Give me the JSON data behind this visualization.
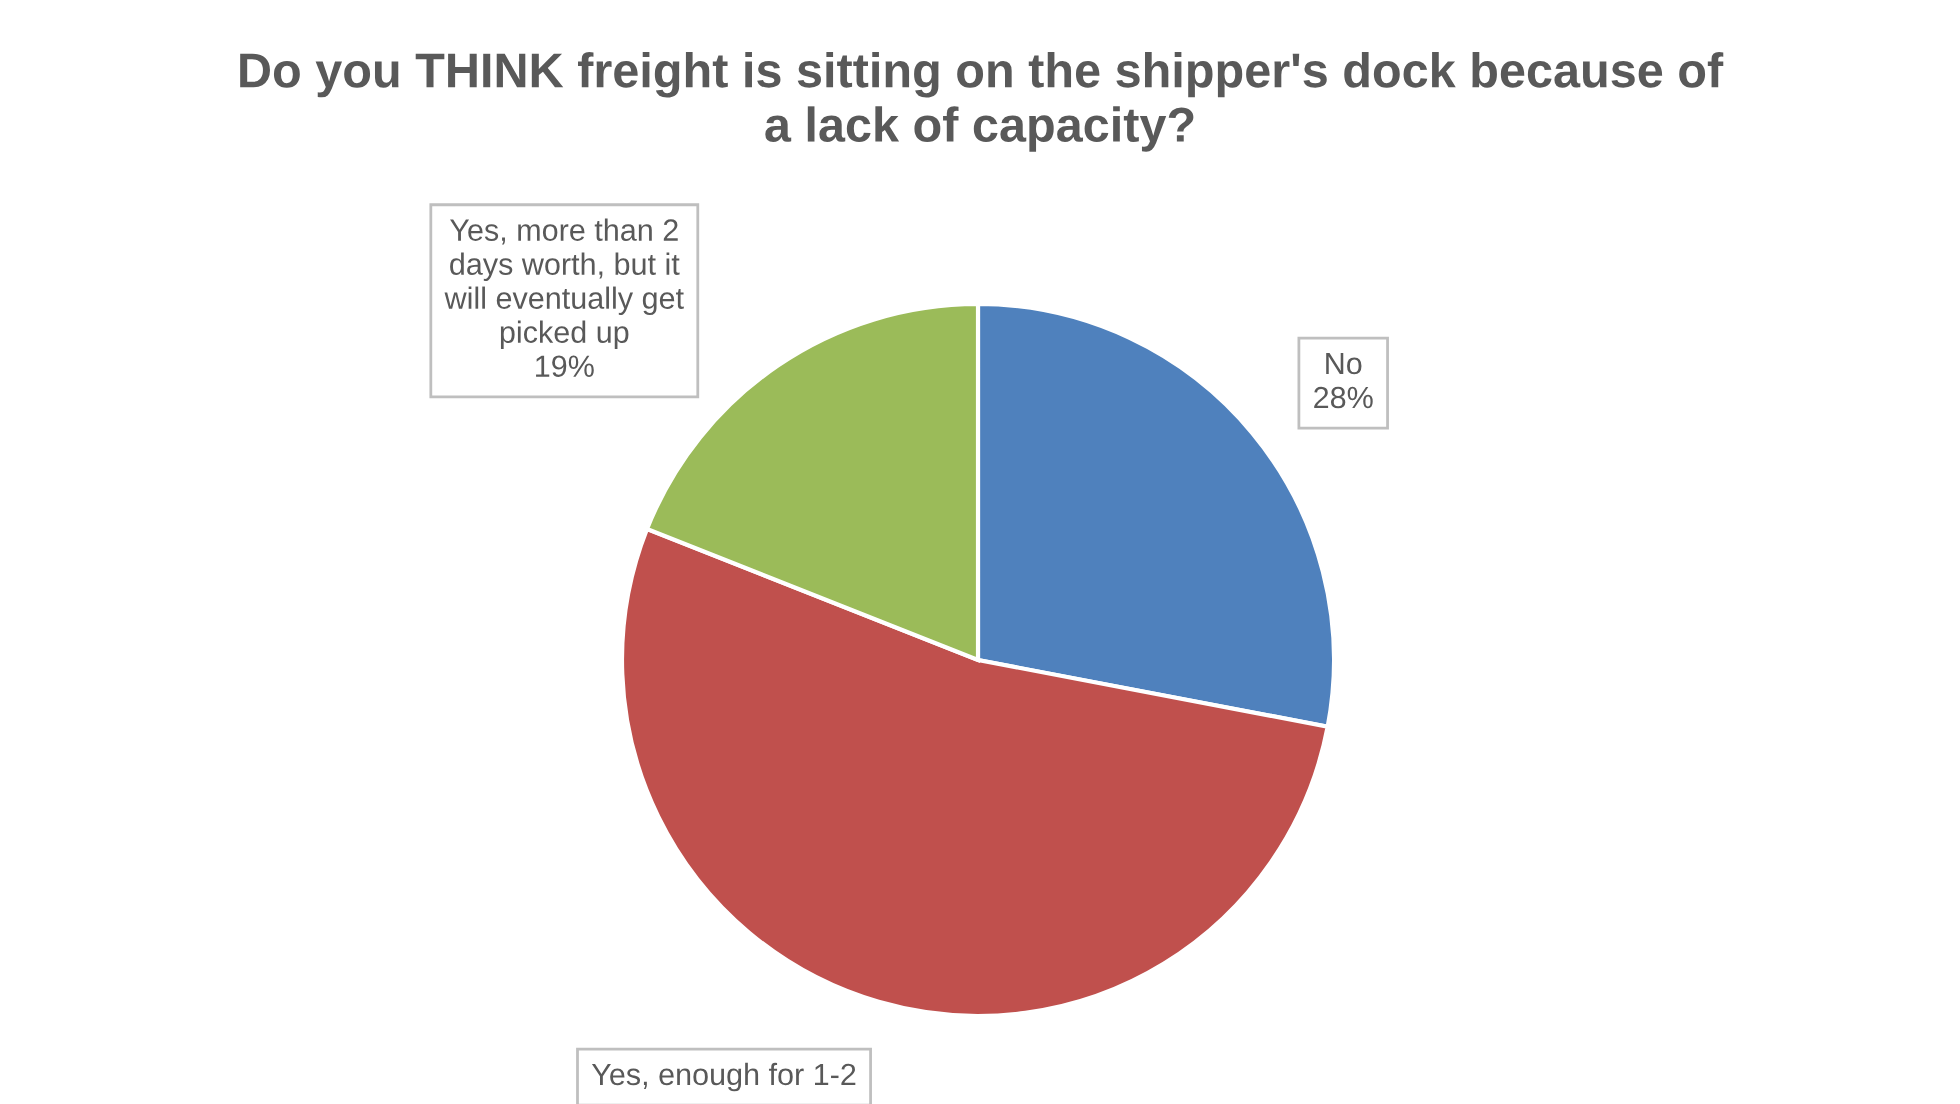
{
  "chart_data": {
    "type": "pie",
    "title": "Do you THINK freight is sitting on the shipper's dock because of a lack of capacity?",
    "categories": [
      "No",
      "Yes, enough for 1-2",
      "Yes, more than 2 days worth, but it will eventually get picked up"
    ],
    "values": [
      28,
      53,
      19
    ],
    "colors": [
      "#4f81bd",
      "#c0504d",
      "#9bbb59"
    ],
    "value_labels": [
      "28%",
      null,
      "19%"
    ]
  }
}
